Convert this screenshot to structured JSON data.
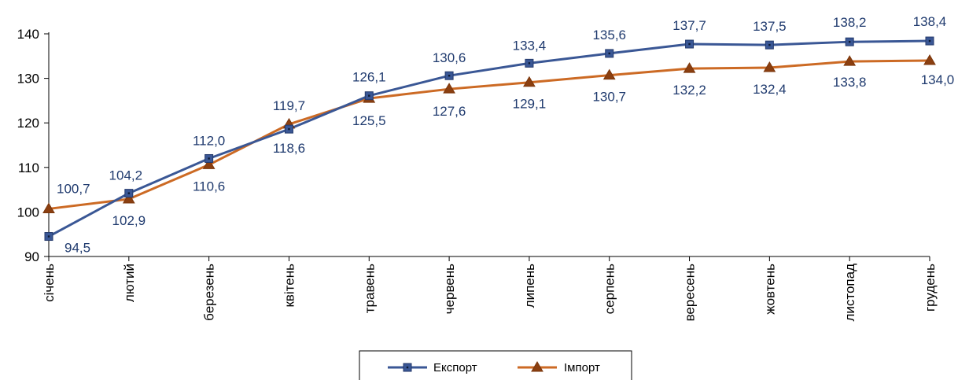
{
  "chart_data": {
    "type": "line",
    "categories": [
      "січень",
      "лютий",
      "березень",
      "квітень",
      "травень",
      "червень",
      "липень",
      "серпень",
      "вересень",
      "жовтень",
      "листопад",
      "грудень"
    ],
    "series": [
      {
        "name": "Експорт",
        "color": "#3a5795",
        "marker": "square",
        "values": [
          94.5,
          104.2,
          112.0,
          118.6,
          126.1,
          130.6,
          133.4,
          135.6,
          137.7,
          137.5,
          138.2,
          138.4
        ],
        "labels": [
          "94,5",
          "104,2",
          "112,0",
          "118,6",
          "126,1",
          "130,6",
          "133,4",
          "135,6",
          "137,7",
          "137,5",
          "138,2",
          "138,4"
        ]
      },
      {
        "name": "Імпорт",
        "color": "#cc6a24",
        "marker": "triangle",
        "values": [
          100.7,
          102.9,
          110.6,
          119.7,
          125.5,
          127.6,
          129.1,
          130.7,
          132.2,
          132.4,
          133.8,
          134.0
        ],
        "labels": [
          "100,7",
          "102,9",
          "110,6",
          "119,7",
          "125,5",
          "127,6",
          "129,1",
          "130,7",
          "132,2",
          "132,4",
          "133,8",
          "134,0"
        ]
      }
    ],
    "ylim": [
      90,
      140
    ],
    "yticks": [
      90,
      100,
      110,
      120,
      130,
      140
    ],
    "grid": false,
    "legend": "bottom-center"
  }
}
